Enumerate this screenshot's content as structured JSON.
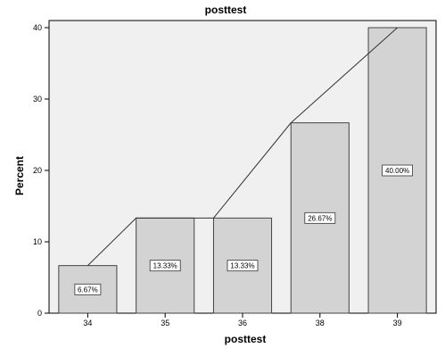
{
  "chart_data": {
    "type": "bar",
    "title": "posttest",
    "xlabel": "posttest",
    "ylabel": "Percent",
    "categories": [
      "34",
      "35",
      "36",
      "38",
      "39"
    ],
    "values": [
      6.67,
      13.33,
      13.33,
      26.67,
      40.0
    ],
    "data_labels": [
      "6.67%",
      "13.33%",
      "13.33%",
      "26.67%",
      "40.00%"
    ],
    "overlay": "line",
    "ylim": [
      0,
      41
    ],
    "yticks": [
      0,
      10,
      20,
      30,
      40
    ],
    "grid": false,
    "legend": "none",
    "colors": {
      "plot_background": "#f0f0f0",
      "bar_fill": "#d3d3d3",
      "bar_stroke": "#444444",
      "line": "#333333",
      "axis": "#000000"
    }
  }
}
